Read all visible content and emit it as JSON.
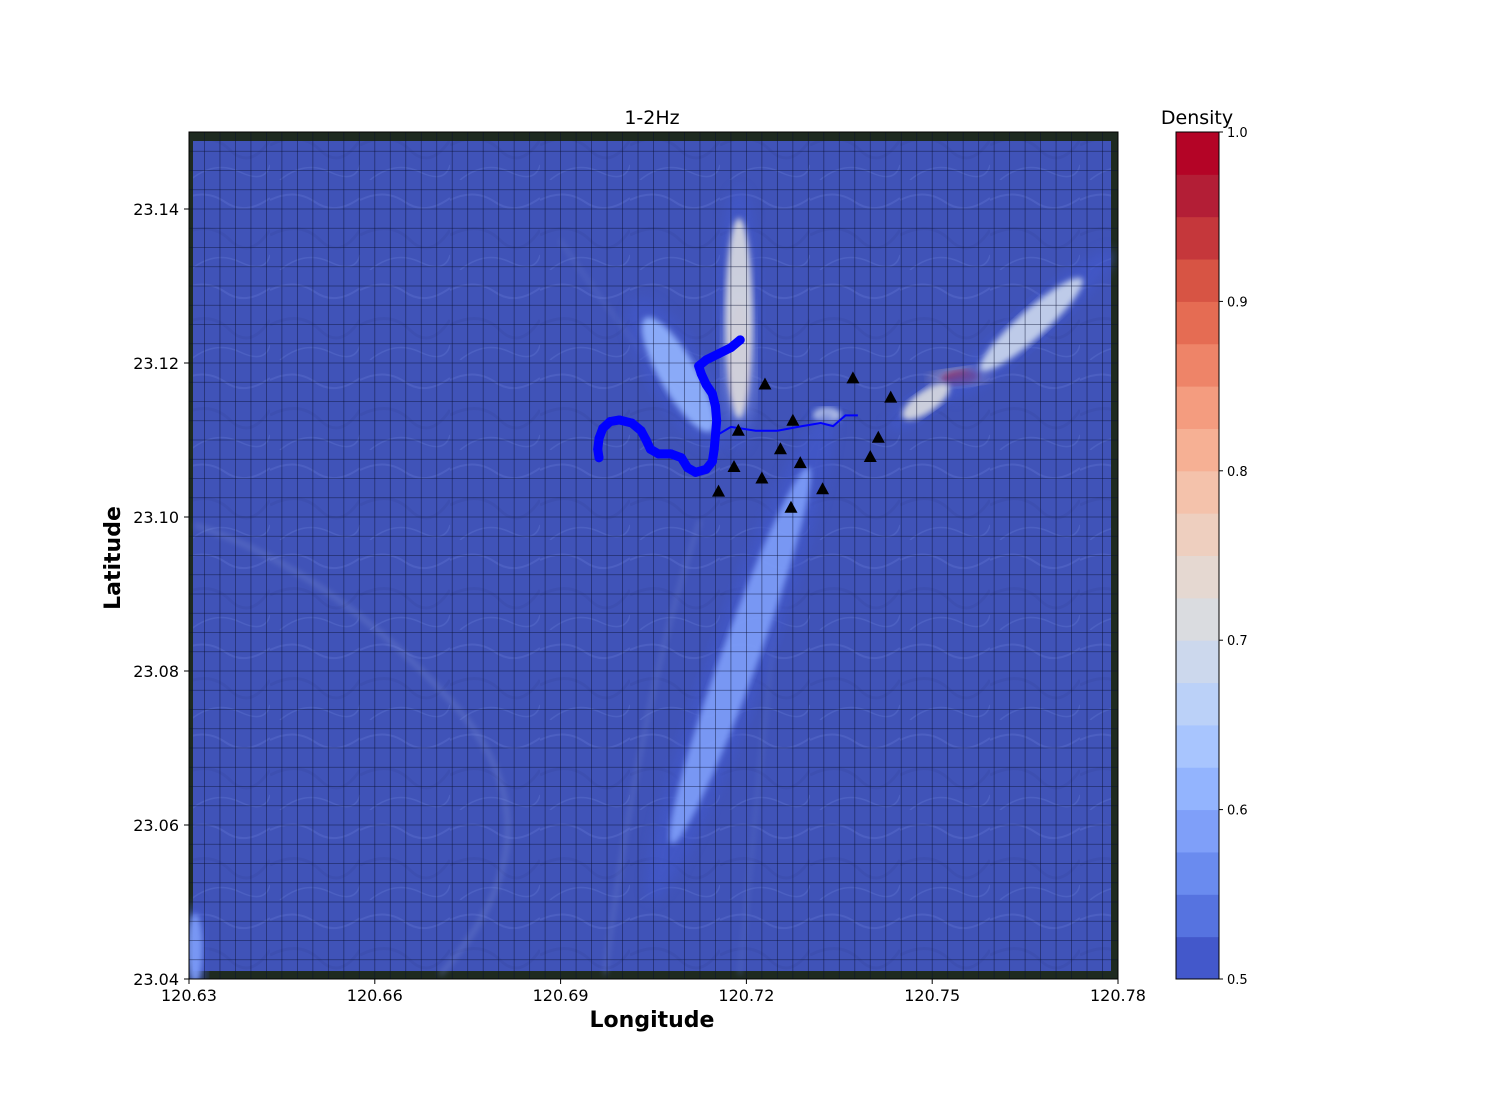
{
  "chart_data": {
    "type": "heatmap",
    "title": "1-2Hz",
    "xlabel": "Longitude",
    "ylabel": "Latitude",
    "xlim": [
      120.63,
      120.78
    ],
    "ylim": [
      23.04,
      23.15
    ],
    "xticks": [
      "120.63",
      "120.66",
      "120.69",
      "120.72",
      "120.75",
      "120.78"
    ],
    "xtick_values": [
      120.63,
      120.66,
      120.69,
      120.72,
      120.75,
      120.78
    ],
    "yticks": [
      "23.04",
      "23.06",
      "23.08",
      "23.10",
      "23.12",
      "23.14"
    ],
    "ytick_values": [
      23.04,
      23.06,
      23.08,
      23.1,
      23.12,
      23.14
    ],
    "grid": true,
    "colorbar": {
      "label": "Density",
      "range": [
        0.5,
        1.0
      ],
      "levels": 20,
      "ticks": [
        "0.5",
        "0.6",
        "0.7",
        "0.8",
        "0.9",
        "1.0"
      ],
      "tick_values": [
        0.5,
        0.6,
        0.7,
        0.8,
        0.9,
        1.0
      ],
      "colormap": "coolwarm",
      "colors": [
        "#4358cb",
        "#5673e0",
        "#6a8bef",
        "#7f9ff9",
        "#93b4fe",
        "#a8c5fe",
        "#bbd1f8",
        "#ccd8ed",
        "#dadce0",
        "#e5d8d1",
        "#eecfbf",
        "#f4c2ab",
        "#f6b094",
        "#f49c7f",
        "#ee8468",
        "#e56c53",
        "#d75444",
        "#c5373b",
        "#b31e36",
        "#b40426"
      ]
    },
    "stations": [
      {
        "lon": 120.7155,
        "lat": 23.1033
      },
      {
        "lon": 120.718,
        "lat": 23.1065
      },
      {
        "lon": 120.7187,
        "lat": 23.1112
      },
      {
        "lon": 120.723,
        "lat": 23.1172
      },
      {
        "lon": 120.7225,
        "lat": 23.105
      },
      {
        "lon": 120.7255,
        "lat": 23.1088
      },
      {
        "lon": 120.7275,
        "lat": 23.1125
      },
      {
        "lon": 120.7287,
        "lat": 23.107
      },
      {
        "lon": 120.7272,
        "lat": 23.1012
      },
      {
        "lon": 120.7323,
        "lat": 23.1036
      },
      {
        "lon": 120.7372,
        "lat": 23.118
      },
      {
        "lon": 120.74,
        "lat": 23.1078
      },
      {
        "lon": 120.7413,
        "lat": 23.1103
      },
      {
        "lon": 120.7433,
        "lat": 23.1155
      }
    ],
    "track_points": [
      {
        "lon": 120.719,
        "lat": 23.123
      },
      {
        "lon": 120.7175,
        "lat": 23.122
      },
      {
        "lon": 120.7155,
        "lat": 23.1212
      },
      {
        "lon": 120.7135,
        "lat": 23.1204
      },
      {
        "lon": 120.7123,
        "lat": 23.1196
      },
      {
        "lon": 120.7127,
        "lat": 23.1186
      },
      {
        "lon": 120.7135,
        "lat": 23.1172
      },
      {
        "lon": 120.7145,
        "lat": 23.116
      },
      {
        "lon": 120.715,
        "lat": 23.1144
      },
      {
        "lon": 120.7152,
        "lat": 23.1125
      },
      {
        "lon": 120.715,
        "lat": 23.1106
      },
      {
        "lon": 120.7148,
        "lat": 23.1088
      },
      {
        "lon": 120.7145,
        "lat": 23.1072
      },
      {
        "lon": 120.7135,
        "lat": 23.1062
      },
      {
        "lon": 120.7118,
        "lat": 23.1058
      },
      {
        "lon": 120.7105,
        "lat": 23.1064
      },
      {
        "lon": 120.7095,
        "lat": 23.1077
      },
      {
        "lon": 120.7078,
        "lat": 23.1082
      },
      {
        "lon": 120.7058,
        "lat": 23.1082
      },
      {
        "lon": 120.7045,
        "lat": 23.1088
      },
      {
        "lon": 120.7038,
        "lat": 23.11
      },
      {
        "lon": 120.703,
        "lat": 23.1112
      },
      {
        "lon": 120.7015,
        "lat": 23.1122
      },
      {
        "lon": 120.6995,
        "lat": 23.1126
      },
      {
        "lon": 120.698,
        "lat": 23.1124
      },
      {
        "lon": 120.6968,
        "lat": 23.1115
      },
      {
        "lon": 120.6962,
        "lat": 23.1102
      },
      {
        "lon": 120.696,
        "lat": 23.1088
      },
      {
        "lon": 120.6962,
        "lat": 23.1077
      }
    ],
    "trajectory_line": [
      {
        "lon": 120.715,
        "lat": 23.1105
      },
      {
        "lon": 120.7175,
        "lat": 23.1117
      },
      {
        "lon": 120.7215,
        "lat": 23.1112
      },
      {
        "lon": 120.725,
        "lat": 23.1112
      },
      {
        "lon": 120.729,
        "lat": 23.1118
      },
      {
        "lon": 120.732,
        "lat": 23.1122
      },
      {
        "lon": 120.734,
        "lat": 23.1118
      },
      {
        "lon": 120.736,
        "lat": 23.1132
      },
      {
        "lon": 120.738,
        "lat": 23.1132
      }
    ],
    "density_features": [
      {
        "lon": 120.7188,
        "lat": 23.121,
        "rx": 0.0016,
        "ry": 0.007,
        "rot": 0,
        "density": 0.9
      },
      {
        "lon": 120.7188,
        "lat": 23.1258,
        "rx": 0.0022,
        "ry": 0.013,
        "rot": 0,
        "density": 0.72
      },
      {
        "lon": 120.709,
        "lat": 23.1185,
        "rx": 0.003,
        "ry": 0.0085,
        "rot": -30,
        "density": 0.62
      },
      {
        "lon": 120.733,
        "lat": 23.1132,
        "rx": 0.0022,
        "ry": 0.001,
        "rot": 0,
        "density": 0.7
      },
      {
        "lon": 120.7545,
        "lat": 23.1181,
        "rx": 0.003,
        "ry": 0.0009,
        "rot": -8,
        "density": 0.95
      },
      {
        "lon": 120.766,
        "lat": 23.125,
        "rx": 0.011,
        "ry": 0.0018,
        "rot": -42,
        "density": 0.7
      },
      {
        "lon": 120.749,
        "lat": 23.115,
        "rx": 0.0045,
        "ry": 0.0014,
        "rot": -35,
        "density": 0.72
      },
      {
        "lon": 120.719,
        "lat": 23.082,
        "rx": 0.003,
        "ry": 0.026,
        "rot": 20,
        "density": 0.6
      },
      {
        "lon": 120.631,
        "lat": 23.044,
        "rx": 0.0012,
        "ry": 0.0045,
        "rot": 0,
        "density": 0.58
      }
    ]
  }
}
